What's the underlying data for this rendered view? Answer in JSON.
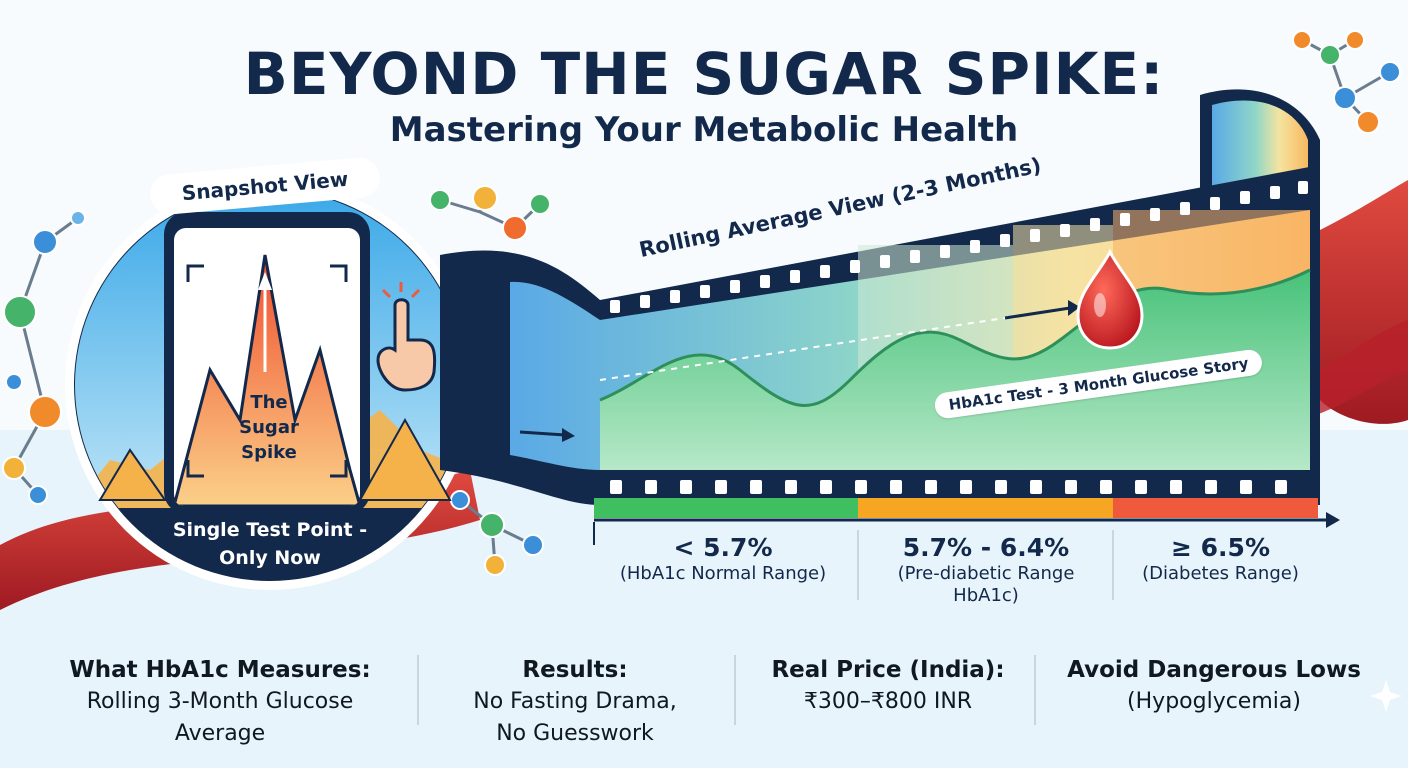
{
  "title": {
    "main": "BEYOND THE SUGAR SPIKE:",
    "subtitle": "Mastering Your Metabolic Health"
  },
  "snapshot": {
    "label": "Snapshot View",
    "spike_label_lines": [
      "The",
      "Sugar",
      "Spike"
    ],
    "caption_lines": [
      "Single Test Point -",
      "Only Now"
    ]
  },
  "film": {
    "title": "Rolling Average View (2-3 Months)",
    "badge": "HbA1c Test - 3 Month Glucose Story"
  },
  "ranges": [
    {
      "value": "< 5.7%",
      "desc_lines": [
        "(HbA1c Normal Range)"
      ],
      "color": "#3fbf5f"
    },
    {
      "value": "5.7% - 6.4%",
      "desc_lines": [
        "(Pre-diabetic Range",
        "HbA1c)"
      ],
      "color": "#f6a623"
    },
    {
      "value": "≥ 6.5%",
      "desc_lines": [
        "(Diabetes Range)"
      ],
      "color": "#ef5a3c"
    }
  ],
  "info": [
    {
      "head": "What HbA1c Measures:",
      "body_lines": [
        "Rolling 3-Month Glucose",
        "Average"
      ]
    },
    {
      "head": "Results:",
      "body_lines": [
        "No Fasting Drama,",
        "No Guesswork"
      ]
    },
    {
      "head": "Real Price (India):",
      "body_lines": [
        "₹300–₹800 INR"
      ]
    },
    {
      "head": "Avoid Dangerous Lows",
      "body_lines": [
        "(Hypoglycemia)"
      ]
    }
  ],
  "colors": {
    "navy": "#13294b",
    "normal": "#3fbf5f",
    "prediabetic": "#f6a623",
    "diabetes": "#ef5a3c",
    "blood": "#c8202a"
  },
  "icons": [
    "molecule-icon",
    "pointing-hand-icon",
    "blood-drop-icon",
    "smartphone-icon",
    "film-strip-icon"
  ]
}
